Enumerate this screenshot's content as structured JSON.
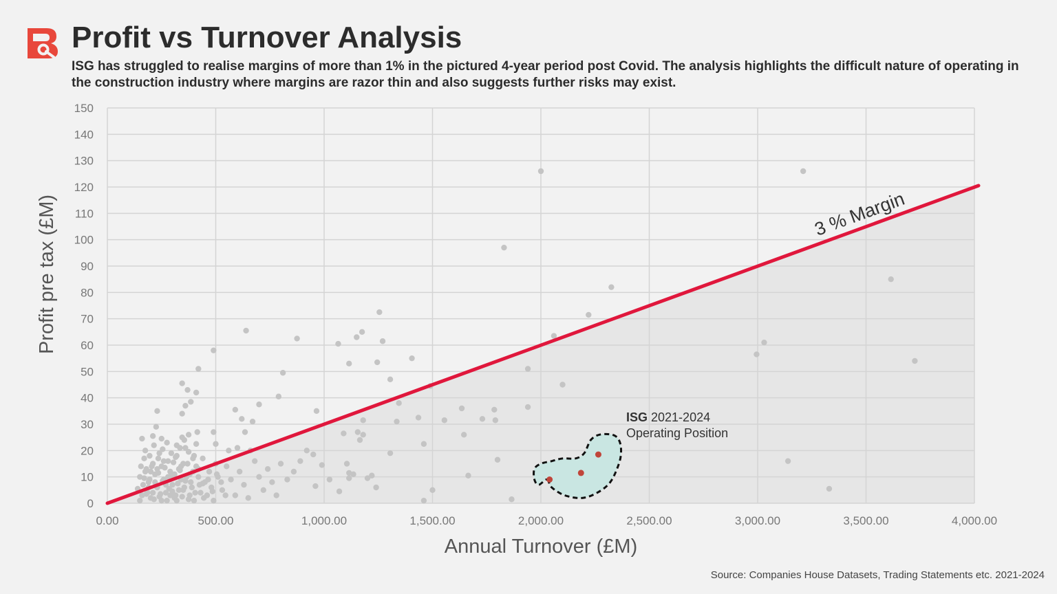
{
  "header": {
    "title": "Profit vs Turnover Analysis",
    "subtitle": "ISG has struggled to realise margins of more than 1% in the pictured 4-year period post Covid. The analysis highlights the difficult nature of operating in the construction industry where margins are razor thin and also suggests further risks may exist."
  },
  "footer": {
    "source": "Source: Companies House Datasets, Trading Statements etc. 2021-2024"
  },
  "colors": {
    "brand": "#e8473b",
    "margin_line": "#e0173c",
    "points": "#c4c4c4",
    "isg_points": "#c0453a",
    "isg_region": "#c9e6e2",
    "grid": "#d4d4d4"
  },
  "chart_data": {
    "type": "scatter",
    "xlabel": "Annual Turnover (£M)",
    "ylabel": "Profit pre tax (£M)",
    "xlim": [
      0,
      4000
    ],
    "ylim": [
      0,
      150
    ],
    "x_ticks": [
      0,
      500,
      1000,
      1500,
      2000,
      2500,
      3000,
      3500,
      4000
    ],
    "x_tick_labels": [
      "0.00",
      "500.00",
      "1,000.00",
      "1,500.00",
      "2,000.00",
      "2,500.00",
      "3,000.00",
      "3,500.00",
      "4,000.00"
    ],
    "y_ticks": [
      0,
      10,
      20,
      30,
      40,
      50,
      60,
      70,
      80,
      90,
      100,
      110,
      120,
      130,
      140,
      150
    ],
    "y_tick_labels": [
      "0",
      "10",
      "20",
      "30",
      "40",
      "50",
      "60",
      "70",
      "80",
      "90",
      "100",
      "110",
      "120",
      "130",
      "140",
      "150"
    ],
    "grid": true,
    "reference_line": {
      "label": "3 % Margin",
      "x": [
        0,
        4000
      ],
      "y": [
        0,
        120
      ]
    },
    "highlight": {
      "label_bold": "ISG",
      "label_rest": " 2021-2024",
      "label_line2": "Operating Position",
      "outline": [
        [
          2028,
          9
        ],
        [
          2050,
          6
        ],
        [
          2110,
          3
        ],
        [
          2190,
          2
        ],
        [
          2260,
          4
        ],
        [
          2320,
          8
        ],
        [
          2360,
          15
        ],
        [
          2370,
          20
        ],
        [
          2360,
          24
        ],
        [
          2330,
          26
        ],
        [
          2270,
          26
        ],
        [
          2230,
          24
        ],
        [
          2200,
          19
        ],
        [
          2160,
          17
        ],
        [
          2100,
          17
        ],
        [
          2050,
          16
        ],
        [
          2000,
          15
        ],
        [
          1970,
          13
        ],
        [
          1970,
          9
        ],
        [
          1990,
          7
        ]
      ],
      "points": [
        {
          "x": 2040,
          "y": 9
        },
        {
          "x": 2185,
          "y": 11.5
        },
        {
          "x": 2265,
          "y": 18.5
        }
      ]
    },
    "series": [
      {
        "name": "Companies",
        "points": [
          [
            2000,
            126
          ],
          [
            3210,
            126
          ],
          [
            1830,
            97
          ],
          [
            2325,
            82
          ],
          [
            3615,
            85
          ],
          [
            1255,
            72.5
          ],
          [
            2220,
            71.5
          ],
          [
            640,
            65.5
          ],
          [
            1175,
            65
          ],
          [
            1150,
            63
          ],
          [
            875,
            62.5
          ],
          [
            1270,
            61.5
          ],
          [
            1065,
            60.5
          ],
          [
            2060,
            63.5
          ],
          [
            3030,
            61
          ],
          [
            2995,
            56.5
          ],
          [
            3725,
            54
          ],
          [
            490,
            58
          ],
          [
            1115,
            53
          ],
          [
            1245,
            53.5
          ],
          [
            1405,
            55
          ],
          [
            420,
            51
          ],
          [
            810,
            49.5
          ],
          [
            1940,
            51
          ],
          [
            1305,
            47
          ],
          [
            1490,
            44.5
          ],
          [
            2100,
            45
          ],
          [
            345,
            45.5
          ],
          [
            370,
            43
          ],
          [
            410,
            42
          ],
          [
            790,
            40.5
          ],
          [
            385,
            38.5
          ],
          [
            360,
            37
          ],
          [
            700,
            37.5
          ],
          [
            1345,
            38
          ],
          [
            590,
            35.5
          ],
          [
            230,
            35
          ],
          [
            345,
            34
          ],
          [
            965,
            35
          ],
          [
            1940,
            36.5
          ],
          [
            1635,
            36
          ],
          [
            1785,
            35.5
          ],
          [
            620,
            32
          ],
          [
            670,
            31
          ],
          [
            1180,
            31.5
          ],
          [
            1335,
            31
          ],
          [
            1435,
            32.5
          ],
          [
            1555,
            31.5
          ],
          [
            1730,
            32
          ],
          [
            1790,
            31.5
          ],
          [
            225,
            29
          ],
          [
            490,
            27
          ],
          [
            415,
            27
          ],
          [
            635,
            27
          ],
          [
            1155,
            27
          ],
          [
            1180,
            26
          ],
          [
            1090,
            26.5
          ],
          [
            1645,
            26
          ],
          [
            1460,
            22.5
          ],
          [
            1165,
            24
          ],
          [
            345,
            25
          ],
          [
            375,
            26
          ],
          [
            160,
            24.5
          ],
          [
            210,
            25.5
          ],
          [
            250,
            24.5
          ],
          [
            320,
            22
          ],
          [
            410,
            22.5
          ],
          [
            500,
            22.5
          ],
          [
            560,
            20
          ],
          [
            600,
            21
          ],
          [
            660,
            20
          ],
          [
            1305,
            19
          ],
          [
            920,
            20
          ],
          [
            950,
            18.5
          ],
          [
            990,
            14.5
          ],
          [
            1105,
            15
          ],
          [
            1800,
            16.5
          ],
          [
            3140,
            16
          ],
          [
            1665,
            10.5
          ],
          [
            1500,
            5
          ],
          [
            1460,
            1
          ],
          [
            1865,
            1.5
          ],
          [
            3330,
            5.5
          ],
          [
            1115,
            9.5
          ],
          [
            1135,
            11
          ],
          [
            1200,
            9.5
          ],
          [
            1220,
            10.5
          ],
          [
            1240,
            6
          ],
          [
            960,
            6.5
          ],
          [
            1070,
            4.5
          ],
          [
            1025,
            9
          ],
          [
            1115,
            11.5
          ],
          [
            140,
            5.5
          ],
          [
            150,
            10
          ],
          [
            160,
            3
          ],
          [
            170,
            17
          ],
          [
            180,
            13
          ],
          [
            190,
            8
          ],
          [
            200,
            2
          ],
          [
            210,
            15
          ],
          [
            220,
            11
          ],
          [
            230,
            6
          ],
          [
            240,
            19
          ],
          [
            250,
            14
          ],
          [
            260,
            9
          ],
          [
            270,
            4
          ],
          [
            280,
            16
          ],
          [
            290,
            12
          ],
          [
            300,
            7
          ],
          [
            310,
            2
          ],
          [
            320,
            18
          ],
          [
            330,
            13
          ],
          [
            340,
            9
          ],
          [
            350,
            5
          ],
          [
            360,
            21
          ],
          [
            370,
            15
          ],
          [
            380,
            11
          ],
          [
            390,
            6
          ],
          [
            400,
            1
          ],
          [
            410,
            14
          ],
          [
            420,
            10
          ],
          [
            430,
            4
          ],
          [
            440,
            17
          ],
          [
            450,
            8
          ],
          [
            460,
            3
          ],
          [
            470,
            12
          ],
          [
            480,
            6
          ],
          [
            490,
            1
          ],
          [
            500,
            15
          ],
          [
            510,
            10
          ],
          [
            530,
            5
          ],
          [
            550,
            14
          ],
          [
            570,
            9
          ],
          [
            590,
            3
          ],
          [
            610,
            12
          ],
          [
            630,
            7
          ],
          [
            650,
            2
          ],
          [
            680,
            16
          ],
          [
            700,
            10
          ],
          [
            720,
            5
          ],
          [
            740,
            13
          ],
          [
            760,
            8
          ],
          [
            780,
            3
          ],
          [
            800,
            15
          ],
          [
            830,
            9
          ],
          [
            860,
            12
          ],
          [
            890,
            16
          ],
          [
            150,
            1
          ],
          [
            165,
            7
          ],
          [
            175,
            12
          ],
          [
            185,
            4
          ],
          [
            195,
            9
          ],
          [
            205,
            14
          ],
          [
            215,
            1.5
          ],
          [
            225,
            6.5
          ],
          [
            235,
            11.5
          ],
          [
            245,
            3.5
          ],
          [
            255,
            8.5
          ],
          [
            265,
            13.5
          ],
          [
            275,
            1
          ],
          [
            285,
            5.5
          ],
          [
            295,
            10.5
          ],
          [
            305,
            15.5
          ],
          [
            315,
            3
          ],
          [
            325,
            7.5
          ],
          [
            335,
            12.5
          ],
          [
            345,
            2.5
          ],
          [
            355,
            6
          ],
          [
            365,
            10
          ],
          [
            375,
            1.5
          ],
          [
            385,
            8
          ],
          [
            395,
            12
          ],
          [
            405,
            4
          ],
          [
            425,
            7
          ],
          [
            445,
            2
          ],
          [
            465,
            9
          ],
          [
            485,
            4.5
          ],
          [
            505,
            11
          ],
          [
            525,
            8
          ],
          [
            545,
            3
          ],
          [
            175,
            20
          ],
          [
            195,
            18
          ],
          [
            215,
            22
          ],
          [
            235,
            17
          ],
          [
            255,
            20.5
          ],
          [
            275,
            23
          ],
          [
            295,
            19
          ],
          [
            315,
            17.5
          ],
          [
            335,
            21
          ],
          [
            355,
            24
          ],
          [
            375,
            19.5
          ],
          [
            395,
            17
          ],
          [
            155,
            14
          ],
          [
            170,
            9.5
          ],
          [
            190,
            6
          ],
          [
            210,
            4
          ],
          [
            230,
            13
          ],
          [
            250,
            1
          ],
          [
            270,
            7
          ],
          [
            290,
            3
          ],
          [
            310,
            11
          ],
          [
            330,
            5
          ],
          [
            350,
            15
          ],
          [
            180,
            3.5
          ],
          [
            200,
            12
          ],
          [
            220,
            8
          ],
          [
            240,
            2.5
          ],
          [
            260,
            16
          ],
          [
            280,
            10
          ],
          [
            300,
            4.5
          ],
          [
            320,
            1
          ],
          [
            340,
            14
          ],
          [
            360,
            8.5
          ],
          [
            380,
            3
          ],
          [
            400,
            18
          ],
          [
            420,
            13
          ],
          [
            440,
            7.5
          ]
        ]
      }
    ]
  }
}
